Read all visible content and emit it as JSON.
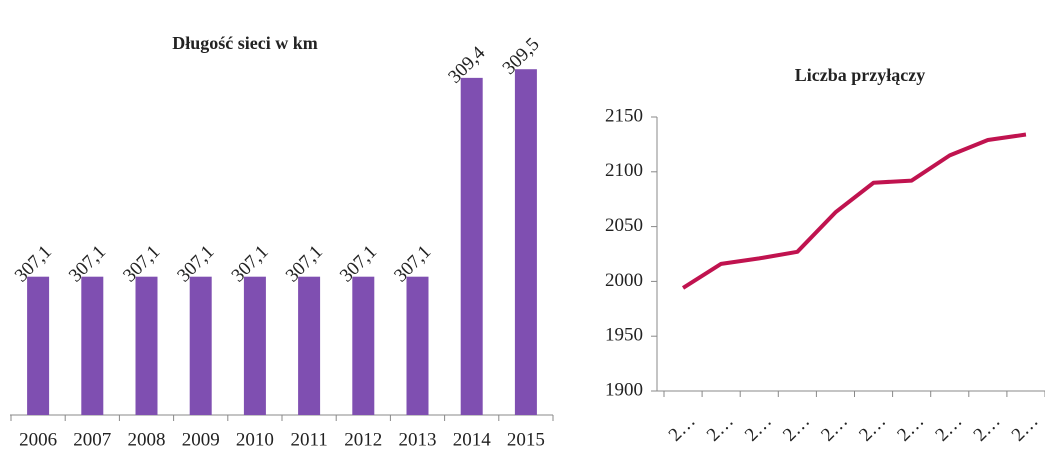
{
  "chart_data": [
    {
      "type": "bar",
      "title": "Długość sieci w km",
      "categories": [
        "2006",
        "2007",
        "2008",
        "2009",
        "2010",
        "2011",
        "2012",
        "2013",
        "2014",
        "2015"
      ],
      "values": [
        307.1,
        307.1,
        307.1,
        307.1,
        307.1,
        307.1,
        307.1,
        307.1,
        309.4,
        309.5
      ],
      "value_labels": [
        "307,1",
        "307,1",
        "307,1",
        "307,1",
        "307,1",
        "307,1",
        "307,1",
        "307,1",
        "309,4",
        "309,5"
      ],
      "color": "#7f4fb1",
      "ylim": [
        305.5,
        310
      ]
    },
    {
      "type": "line",
      "title": "Liczba przyłączy",
      "categories": [
        "2…",
        "2…",
        "2…",
        "2…",
        "2…",
        "2…",
        "2…",
        "2…",
        "2…",
        "2…"
      ],
      "series": [
        {
          "name": "Liczba przyłączy",
          "color": "#c0134f",
          "values": [
            1994,
            2016,
            2021,
            2027,
            2063,
            2090,
            2092,
            2115,
            2129,
            2134
          ]
        }
      ],
      "ylim": [
        1900,
        2150
      ],
      "yticks": [
        1900,
        1950,
        2000,
        2050,
        2100,
        2150
      ]
    }
  ]
}
